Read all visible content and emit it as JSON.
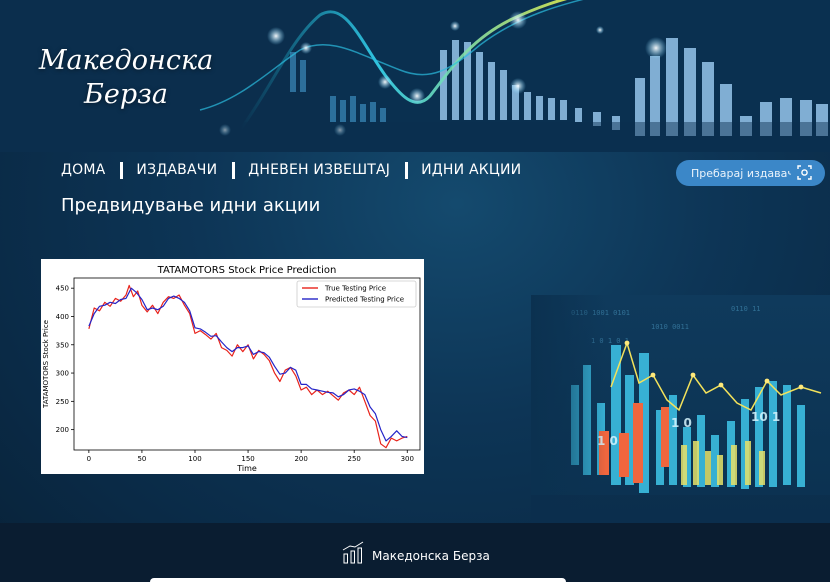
{
  "brand": {
    "title_line1": "Македонска",
    "title_line2": "Берза"
  },
  "nav": {
    "items": [
      {
        "label": "ДОМА"
      },
      {
        "label": "ИЗДАВАЧИ"
      },
      {
        "label": "ДНЕВЕН ИЗВЕШТАЈ"
      },
      {
        "label": "ИДНИ АКЦИИ"
      }
    ]
  },
  "search": {
    "placeholder": "Пребарај издавач..."
  },
  "page": {
    "title": "Предвидување идни акции"
  },
  "chart_data": {
    "type": "line",
    "title": "TATAMOTORS Stock Price Prediction",
    "xlabel": "Time",
    "ylabel": "TATAMOTORS Stock Price",
    "xlim": [
      -14,
      312
    ],
    "ylim": [
      164,
      468
    ],
    "xticks": [
      0,
      50,
      100,
      150,
      200,
      250,
      300
    ],
    "yticks": [
      200,
      250,
      300,
      350,
      400,
      450
    ],
    "legend_position": "top-right",
    "grid": false,
    "series": [
      {
        "name": "True Testing Price",
        "color": "#e8231b",
        "x": [
          0,
          5,
          10,
          15,
          20,
          25,
          30,
          35,
          38,
          42,
          46,
          50,
          55,
          60,
          65,
          70,
          75,
          80,
          85,
          90,
          95,
          100,
          105,
          110,
          115,
          120,
          125,
          130,
          135,
          140,
          145,
          150,
          155,
          160,
          165,
          170,
          175,
          180,
          185,
          190,
          195,
          200,
          205,
          210,
          215,
          220,
          225,
          230,
          235,
          240,
          245,
          250,
          255,
          260,
          265,
          270,
          275,
          280,
          285,
          290,
          295,
          300
        ],
        "values": [
          378,
          415,
          410,
          425,
          418,
          432,
          427,
          438,
          455,
          435,
          445,
          420,
          408,
          420,
          405,
          425,
          435,
          432,
          438,
          420,
          405,
          370,
          375,
          368,
          360,
          370,
          345,
          340,
          330,
          350,
          338,
          350,
          325,
          340,
          333,
          322,
          300,
          285,
          305,
          310,
          295,
          270,
          275,
          262,
          270,
          262,
          268,
          260,
          252,
          265,
          270,
          262,
          275,
          250,
          225,
          215,
          175,
          168,
          185,
          180,
          185,
          188
        ]
      },
      {
        "name": "Predicted Testing Price",
        "color": "#2424c8",
        "x": [
          0,
          5,
          10,
          15,
          20,
          25,
          30,
          35,
          40,
          45,
          50,
          55,
          60,
          65,
          70,
          75,
          80,
          85,
          90,
          95,
          100,
          105,
          110,
          115,
          120,
          125,
          130,
          135,
          140,
          145,
          150,
          155,
          160,
          165,
          170,
          175,
          180,
          185,
          190,
          195,
          200,
          205,
          210,
          215,
          220,
          225,
          230,
          235,
          240,
          245,
          250,
          255,
          260,
          265,
          270,
          275,
          280,
          285,
          290,
          295,
          300
        ],
        "values": [
          383,
          405,
          418,
          420,
          425,
          423,
          430,
          432,
          450,
          442,
          430,
          412,
          415,
          412,
          418,
          432,
          436,
          432,
          425,
          410,
          380,
          378,
          372,
          365,
          366,
          355,
          345,
          338,
          345,
          345,
          348,
          333,
          338,
          336,
          328,
          312,
          298,
          300,
          310,
          305,
          280,
          280,
          272,
          270,
          268,
          266,
          265,
          258,
          262,
          270,
          272,
          268,
          262,
          240,
          228,
          200,
          180,
          188,
          198,
          188,
          186
        ]
      }
    ]
  },
  "footer": {
    "brand": "Македонска Берза"
  }
}
